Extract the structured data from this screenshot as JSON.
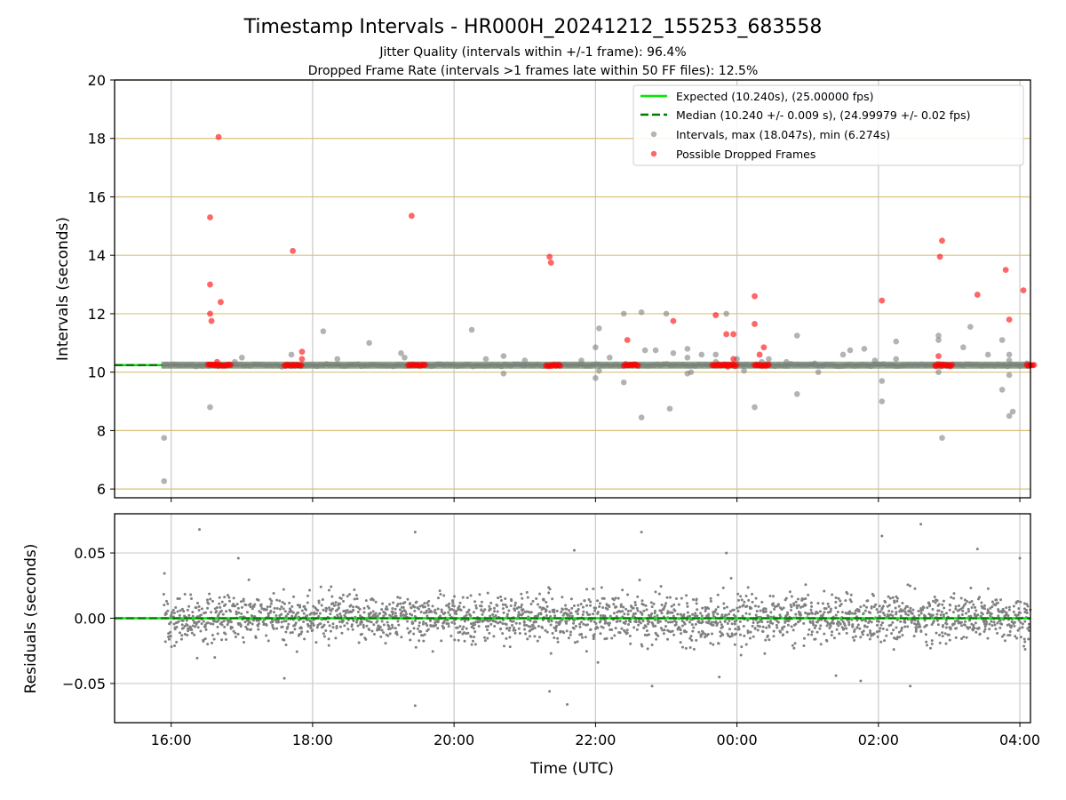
{
  "title": "Timestamp Intervals - HR000H_20241212_155253_683558",
  "subtitle_1": "Jitter Quality (intervals within +/-1 frame): 96.4%",
  "subtitle_2": "Dropped Frame Rate (intervals >1 frames late within 50 FF files): 12.5%",
  "colors": {
    "expected": "#00e600",
    "median": "#007a00",
    "intervals": "#808080",
    "dropped": "#ff0000",
    "vgrid": "#c8c8c8",
    "hgrid_top": "#d9c07a",
    "hgrid_bottom": "#cccccc"
  },
  "chart_data": [
    {
      "type": "scatter",
      "ylabel": "Intervals (seconds)",
      "xlim_hours": [
        15.2,
        28.15
      ],
      "ylim": [
        5.7,
        20
      ],
      "yticks": [
        6,
        8,
        10,
        12,
        14,
        16,
        18,
        20
      ],
      "grid": true,
      "legend_position": "top-right",
      "legend": [
        "Expected (10.240s), (25.00000 fps)",
        "Median (10.240 +/- 0.009 s), (24.99979 +/- 0.02 fps)",
        "Intervals, max (18.047s), min (6.274s)",
        "Possible Dropped Frames"
      ],
      "expected_value": 10.24,
      "median_value": 10.24,
      "data_start_hour": 15.9,
      "outliers_gray": [
        [
          15.9,
          7.75
        ],
        [
          15.9,
          6.27
        ],
        [
          16.55,
          8.8
        ],
        [
          16.9,
          10.35
        ],
        [
          17.0,
          10.5
        ],
        [
          17.7,
          10.6
        ],
        [
          18.15,
          11.4
        ],
        [
          18.35,
          10.45
        ],
        [
          18.8,
          11.0
        ],
        [
          19.25,
          10.65
        ],
        [
          19.3,
          10.5
        ],
        [
          20.25,
          11.45
        ],
        [
          20.45,
          10.45
        ],
        [
          20.7,
          10.55
        ],
        [
          20.7,
          9.95
        ],
        [
          21.0,
          10.4
        ],
        [
          21.8,
          10.4
        ],
        [
          22.0,
          10.85
        ],
        [
          22.0,
          9.8
        ],
        [
          22.05,
          11.5
        ],
        [
          22.05,
          10.05
        ],
        [
          22.2,
          10.5
        ],
        [
          22.4,
          9.65
        ],
        [
          22.4,
          12.0
        ],
        [
          22.65,
          12.05
        ],
        [
          22.65,
          8.45
        ],
        [
          22.7,
          10.75
        ],
        [
          22.85,
          10.75
        ],
        [
          23.0,
          12.0
        ],
        [
          23.05,
          8.75
        ],
        [
          23.1,
          10.65
        ],
        [
          23.3,
          10.8
        ],
        [
          23.3,
          10.5
        ],
        [
          23.35,
          10.0
        ],
        [
          23.3,
          9.95
        ],
        [
          23.5,
          10.6
        ],
        [
          23.7,
          10.6
        ],
        [
          23.7,
          10.35
        ],
        [
          23.85,
          12.0
        ],
        [
          24.0,
          10.45
        ],
        [
          24.1,
          10.05
        ],
        [
          24.25,
          8.8
        ],
        [
          24.35,
          10.35
        ],
        [
          24.45,
          10.45
        ],
        [
          24.7,
          10.35
        ],
        [
          24.85,
          11.25
        ],
        [
          24.85,
          9.25
        ],
        [
          25.1,
          10.3
        ],
        [
          25.15,
          10.0
        ],
        [
          25.5,
          10.6
        ],
        [
          25.6,
          10.75
        ],
        [
          25.8,
          10.8
        ],
        [
          25.95,
          10.4
        ],
        [
          26.05,
          9.7
        ],
        [
          26.05,
          9.0
        ],
        [
          26.25,
          11.05
        ],
        [
          26.25,
          10.45
        ],
        [
          26.85,
          11.25
        ],
        [
          26.85,
          11.1
        ],
        [
          26.85,
          10.0
        ],
        [
          26.9,
          7.75
        ],
        [
          27.2,
          10.85
        ],
        [
          27.3,
          11.55
        ],
        [
          27.55,
          10.6
        ],
        [
          27.75,
          11.1
        ],
        [
          27.75,
          9.4
        ],
        [
          27.85,
          10.4
        ],
        [
          27.85,
          9.9
        ],
        [
          27.85,
          8.5
        ],
        [
          27.9,
          8.65
        ],
        [
          27.85,
          10.6
        ],
        [
          28.1,
          10.3
        ]
      ],
      "dropped_points": [
        [
          16.55,
          15.3
        ],
        [
          16.55,
          13.0
        ],
        [
          16.55,
          12.0
        ],
        [
          16.57,
          11.75
        ],
        [
          16.67,
          18.05
        ],
        [
          16.7,
          12.4
        ],
        [
          16.65,
          10.35
        ],
        [
          17.72,
          14.15
        ],
        [
          17.85,
          10.7
        ],
        [
          17.85,
          10.45
        ],
        [
          19.4,
          15.35
        ],
        [
          21.35,
          13.95
        ],
        [
          21.37,
          13.75
        ],
        [
          22.45,
          11.1
        ],
        [
          23.1,
          11.75
        ],
        [
          23.7,
          11.95
        ],
        [
          23.85,
          11.3
        ],
        [
          23.95,
          11.3
        ],
        [
          23.95,
          10.45
        ],
        [
          24.25,
          12.6
        ],
        [
          24.25,
          11.65
        ],
        [
          24.32,
          10.6
        ],
        [
          24.38,
          10.85
        ],
        [
          26.05,
          12.45
        ],
        [
          26.9,
          14.5
        ],
        [
          26.87,
          13.95
        ],
        [
          26.85,
          10.55
        ],
        [
          27.4,
          12.65
        ],
        [
          27.8,
          13.5
        ],
        [
          27.85,
          11.8
        ],
        [
          28.05,
          12.8
        ]
      ],
      "dropped_clusters": [
        [
          16.52,
          16.85
        ],
        [
          17.6,
          17.85
        ],
        [
          19.35,
          19.6
        ],
        [
          21.3,
          21.5
        ],
        [
          22.4,
          22.6
        ],
        [
          23.65,
          23.85
        ],
        [
          23.85,
          24.0
        ],
        [
          24.25,
          24.45
        ],
        [
          26.8,
          27.05
        ],
        [
          28.1,
          28.2
        ]
      ]
    },
    {
      "type": "scatter",
      "xlabel": "Time (UTC)",
      "ylabel": "Residuals (seconds)",
      "xlim_hours": [
        15.2,
        28.15
      ],
      "ylim": [
        -0.08,
        0.08
      ],
      "yticks": [
        0.05,
        0.0,
        -0.05
      ],
      "ytick_labels": [
        "0.05",
        "0.00",
        "−0.05"
      ],
      "xticks": [
        16,
        18,
        20,
        22,
        24,
        26,
        28
      ],
      "xtick_labels": [
        "16:00",
        "18:00",
        "20:00",
        "22:00",
        "00:00",
        "02:00",
        "04:00"
      ],
      "grid": true,
      "residual_std": 0.009,
      "extreme_points": [
        [
          16.4,
          0.068
        ],
        [
          17.6,
          -0.046
        ],
        [
          16.95,
          0.046
        ],
        [
          19.45,
          0.066
        ],
        [
          19.45,
          -0.067
        ],
        [
          21.35,
          -0.056
        ],
        [
          21.6,
          -0.066
        ],
        [
          21.7,
          0.052
        ],
        [
          22.65,
          0.066
        ],
        [
          22.8,
          -0.052
        ],
        [
          23.85,
          0.05
        ],
        [
          23.75,
          -0.045
        ],
        [
          26.05,
          0.063
        ],
        [
          25.75,
          -0.048
        ],
        [
          26.45,
          -0.052
        ],
        [
          26.6,
          0.072
        ],
        [
          25.4,
          -0.044
        ],
        [
          27.4,
          0.053
        ],
        [
          28.0,
          0.046
        ]
      ]
    }
  ]
}
